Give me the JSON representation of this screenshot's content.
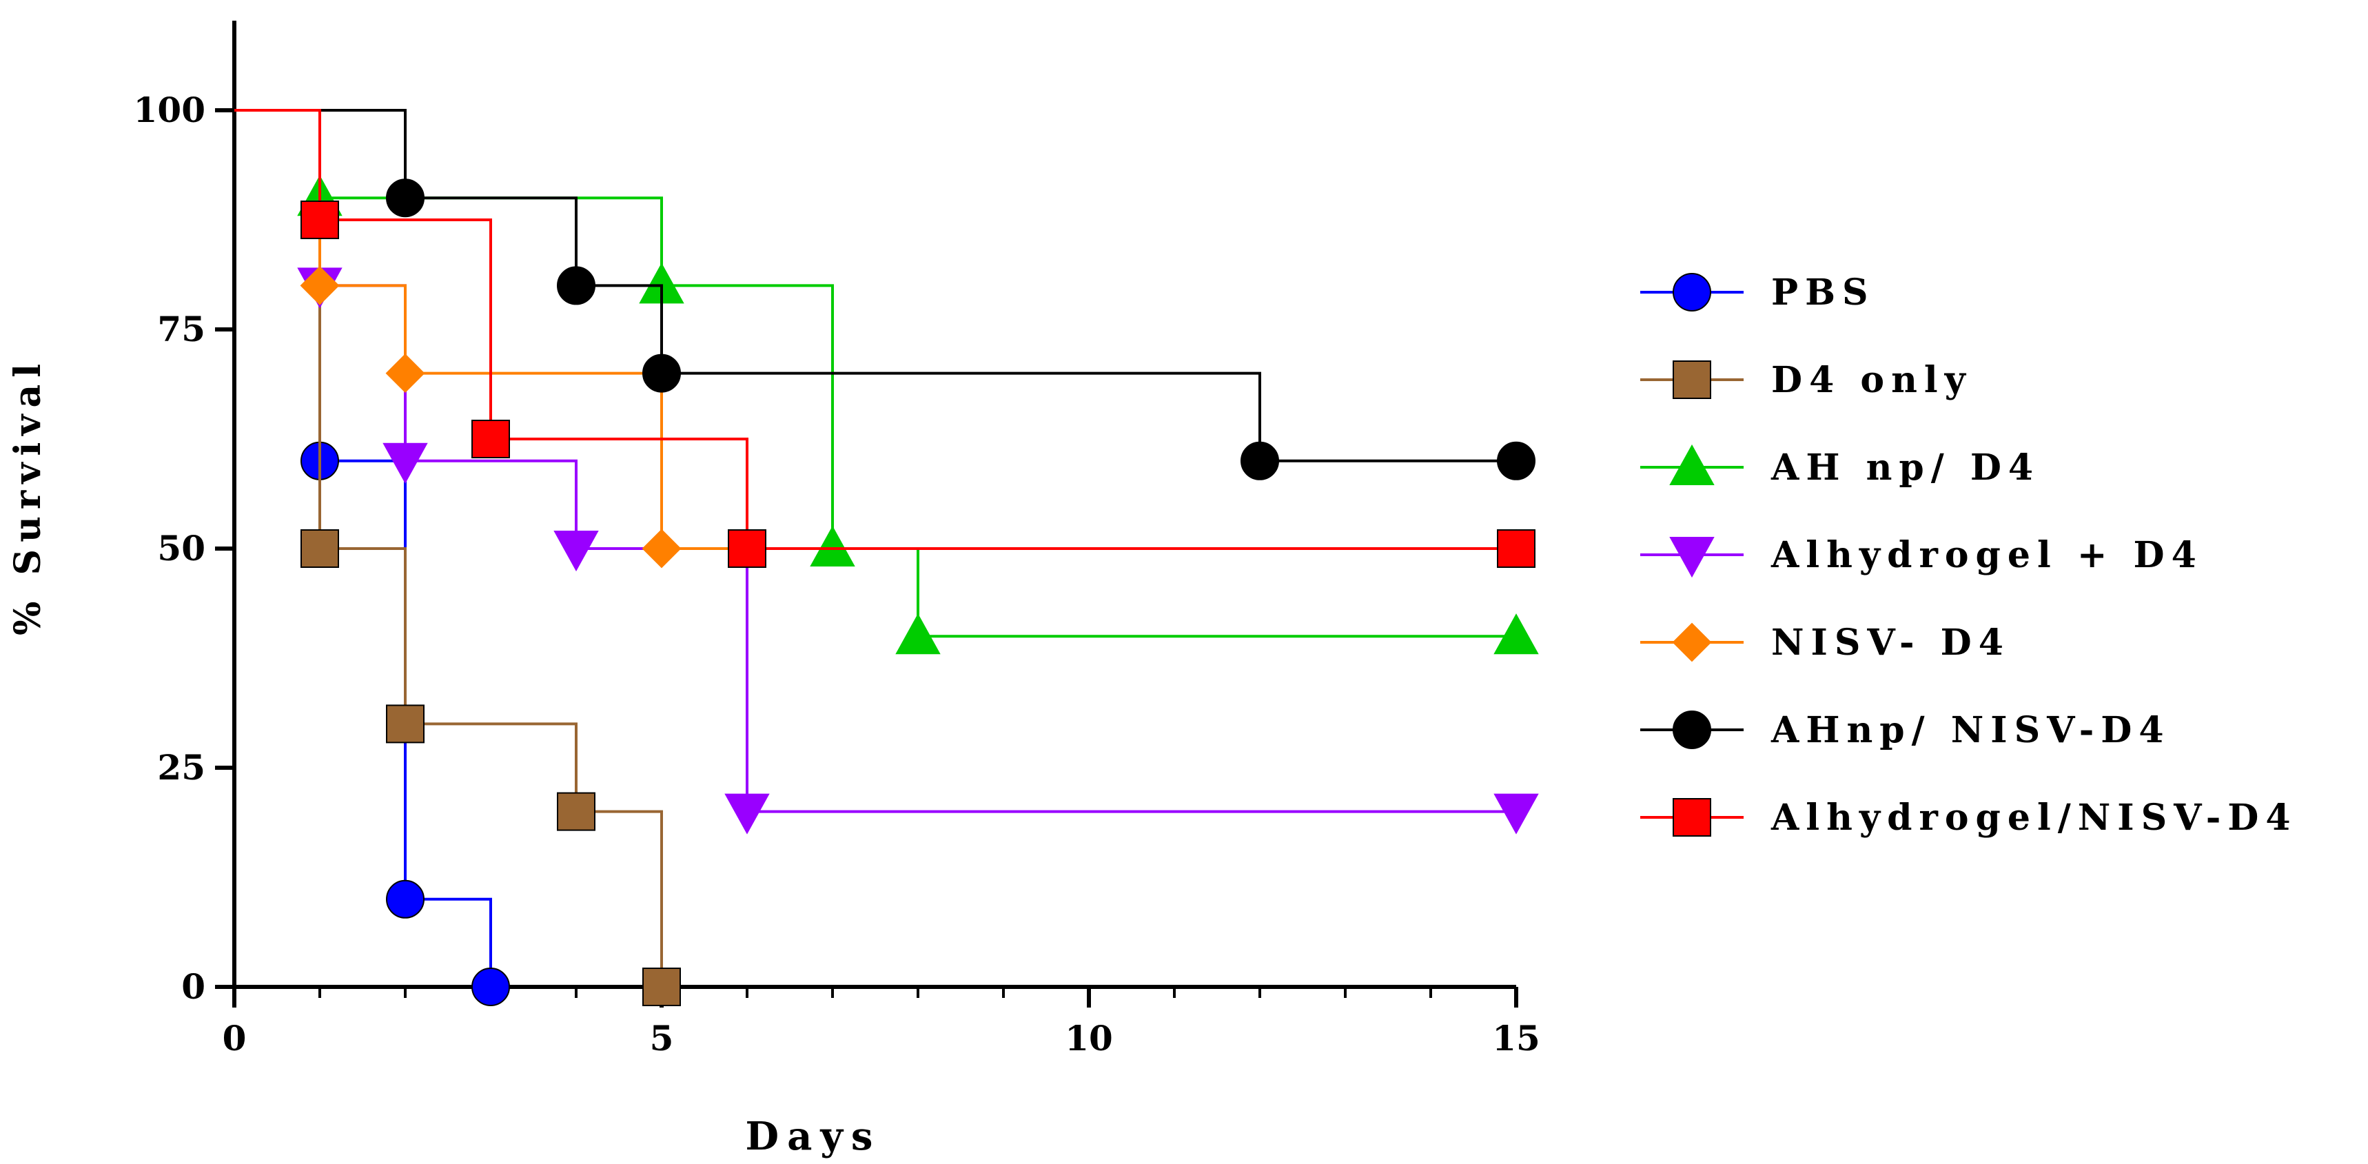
{
  "chart_data": {
    "type": "line",
    "title": "",
    "xlabel": "Days",
    "ylabel": "% Survival",
    "xlim": [
      0,
      15
    ],
    "ylim": [
      0,
      110
    ],
    "xticks": [
      0,
      5,
      10,
      15
    ],
    "yticks": [
      0,
      25,
      50,
      75,
      100
    ],
    "step": true,
    "grid": false,
    "legend_position": "right",
    "series": [
      {
        "name": "PBS",
        "color": "#0000ff",
        "marker": "circle",
        "points": [
          [
            0,
            100
          ],
          [
            1,
            60
          ],
          [
            2,
            10
          ],
          [
            3,
            0
          ]
        ]
      },
      {
        "name": "D4 only",
        "color": "#996633",
        "marker": "square",
        "points": [
          [
            0,
            100
          ],
          [
            1,
            50
          ],
          [
            2,
            30
          ],
          [
            4,
            20
          ],
          [
            5,
            0
          ]
        ]
      },
      {
        "name": "AH np/  D4",
        "color": "#00cc00",
        "marker": "triangle-up",
        "points": [
          [
            0,
            100
          ],
          [
            1,
            90
          ],
          [
            5,
            80
          ],
          [
            7,
            50
          ],
          [
            8,
            40
          ],
          [
            15,
            40
          ]
        ]
      },
      {
        "name": "Alhydrogel + D4",
        "color": "#9900ff",
        "marker": "triangle-down",
        "points": [
          [
            0,
            100
          ],
          [
            1,
            80
          ],
          [
            2,
            60
          ],
          [
            4,
            50
          ],
          [
            6,
            20
          ],
          [
            15,
            20
          ]
        ]
      },
      {
        "name": "NISV- D4",
        "color": "#ff8000",
        "marker": "diamond",
        "points": [
          [
            0,
            100
          ],
          [
            1,
            80
          ],
          [
            2,
            70
          ],
          [
            5,
            50
          ],
          [
            15,
            50
          ]
        ]
      },
      {
        "name": "AHnp/ NISV-D4",
        "color": "#000000",
        "marker": "circle",
        "points": [
          [
            0,
            100
          ],
          [
            2,
            90
          ],
          [
            4,
            80
          ],
          [
            5,
            70
          ],
          [
            12,
            60
          ],
          [
            15,
            60
          ]
        ]
      },
      {
        "name": "Alhydrogel/NISV-D4",
        "color": "#ff0000",
        "marker": "square",
        "points": [
          [
            0,
            100
          ],
          [
            1,
            87.5
          ],
          [
            3,
            62.5
          ],
          [
            6,
            50
          ],
          [
            15,
            50
          ]
        ]
      }
    ]
  }
}
